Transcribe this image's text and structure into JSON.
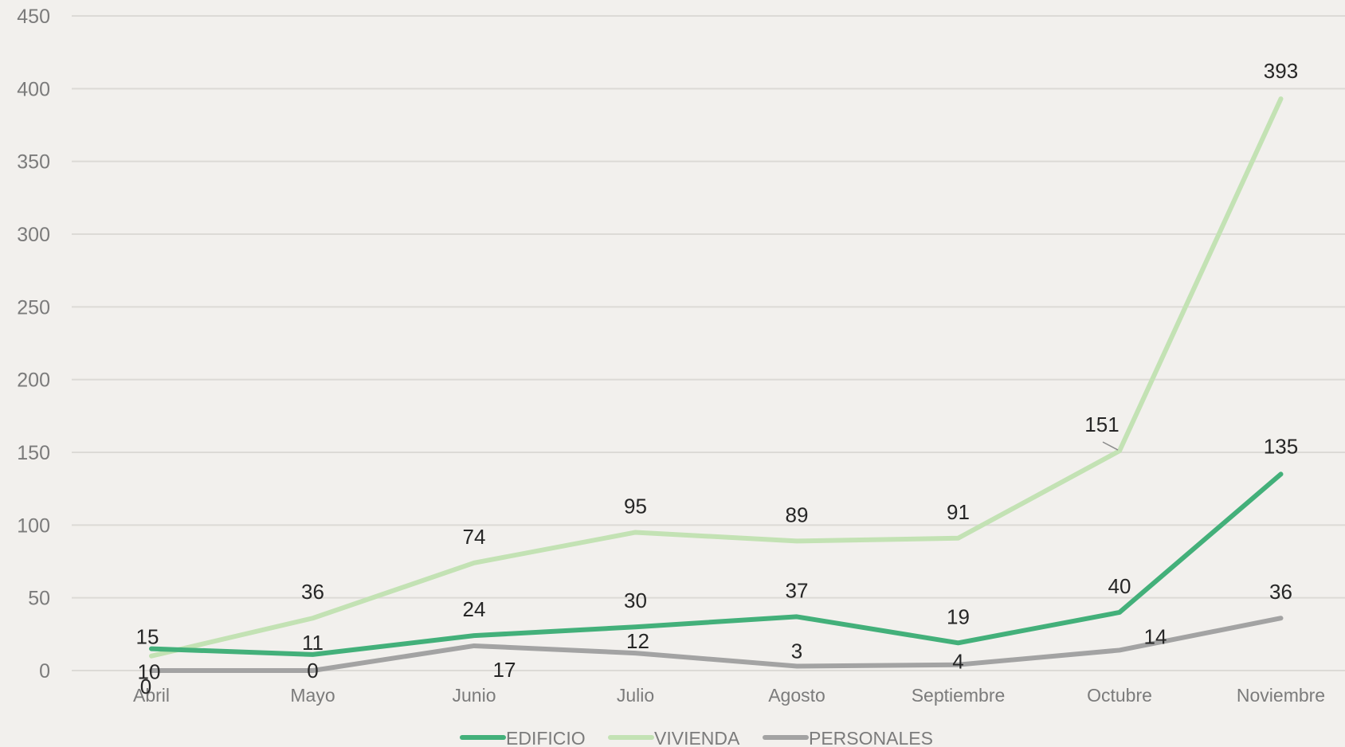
{
  "chart_data": {
    "type": "line",
    "title": "",
    "xlabel": "",
    "ylabel": "",
    "categories": [
      "Abril",
      "Mayo",
      "Junio",
      "Julio",
      "Agosto",
      "Septiembre",
      "Octubre",
      "Noviembre"
    ],
    "ylim": [
      0,
      450
    ],
    "yticks": [
      0,
      50,
      100,
      150,
      200,
      250,
      300,
      350,
      400,
      450
    ],
    "grid": true,
    "legend_position": "bottom",
    "series": [
      {
        "name": "EDIFICIO",
        "color": "#43b07a",
        "values": [
          15,
          11,
          24,
          30,
          37,
          19,
          40,
          135
        ]
      },
      {
        "name": "VIVIENDA",
        "color": "#c3e2b4",
        "values": [
          10,
          36,
          74,
          95,
          89,
          91,
          151,
          393
        ]
      },
      {
        "name": "PERSONALES",
        "color": "#a3a3a3",
        "values": [
          0,
          0,
          17,
          12,
          3,
          4,
          14,
          36
        ]
      }
    ]
  }
}
